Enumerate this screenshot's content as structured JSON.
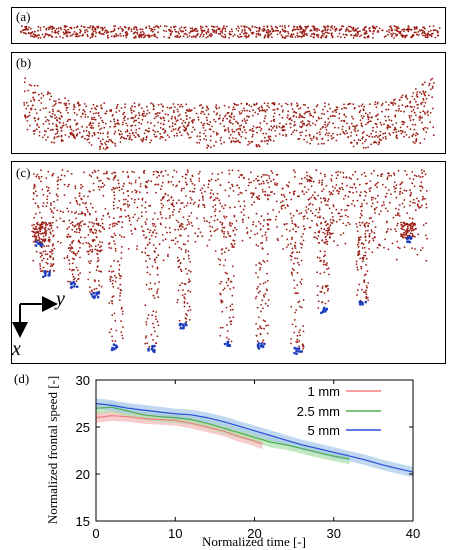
{
  "figure": {
    "panels": [
      {
        "label": "(a)"
      },
      {
        "label": "(b)"
      },
      {
        "label": "(c)"
      },
      {
        "label": "(d)"
      }
    ],
    "axis_glyphs": {
      "y": "y",
      "x": "x"
    },
    "colors": {
      "particles": "#9b1d14",
      "tips": "#1f3fbf"
    }
  },
  "chart_data": {
    "type": "line",
    "xlabel": "Normalized time [-]",
    "ylabel": "Normalized frontal speed [-]",
    "xlim": [
      0,
      40
    ],
    "ylim": [
      15,
      30
    ],
    "xticks": [
      0,
      10,
      20,
      30,
      40
    ],
    "yticks": [
      15,
      20,
      25,
      30
    ],
    "legend_position": "top-right",
    "series": [
      {
        "name": "1 mm",
        "color": "#f08080",
        "band_color": "#f4b6b6",
        "x": [
          0,
          2,
          4,
          6,
          8,
          10,
          12,
          14,
          16,
          18,
          20,
          21
        ],
        "y": [
          26.0,
          26.2,
          26.1,
          25.9,
          25.8,
          25.7,
          25.4,
          25.0,
          24.6,
          24.0,
          23.5,
          23.2
        ]
      },
      {
        "name": "2.5 mm",
        "color": "#4caf50",
        "band_color": "#a8dfa8",
        "x": [
          0,
          2,
          4,
          6,
          8,
          10,
          12,
          14,
          16,
          18,
          20,
          22,
          24,
          26,
          28,
          30,
          32
        ],
        "y": [
          27.0,
          27.1,
          26.7,
          26.3,
          26.1,
          26.0,
          25.8,
          25.4,
          24.9,
          24.4,
          23.9,
          23.4,
          23.1,
          22.7,
          22.3,
          21.9,
          21.6
        ]
      },
      {
        "name": "5 mm",
        "color": "#2a4ed8",
        "band_color": "#a6c8ec",
        "x": [
          0,
          2,
          4,
          6,
          8,
          10,
          12,
          14,
          16,
          18,
          20,
          22,
          24,
          26,
          28,
          30,
          32,
          34,
          36,
          38,
          40
        ],
        "y": [
          27.5,
          27.3,
          27.0,
          26.8,
          26.6,
          26.4,
          26.3,
          26.0,
          25.6,
          25.1,
          24.6,
          24.1,
          23.6,
          23.1,
          22.7,
          22.3,
          21.9,
          21.5,
          21.0,
          20.6,
          20.2
        ]
      }
    ]
  }
}
